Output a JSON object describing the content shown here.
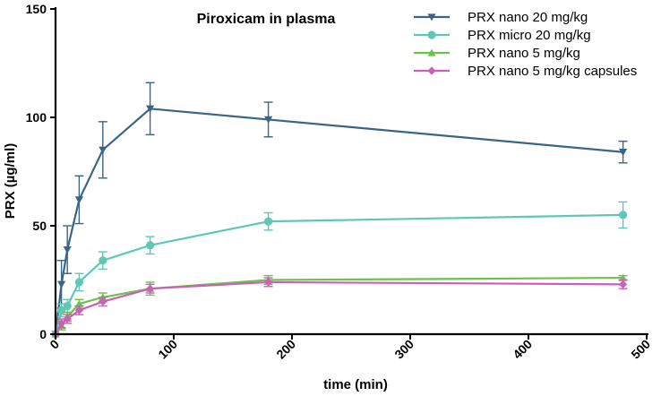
{
  "chart_data": {
    "type": "line",
    "title": "Piroxicam in plasma",
    "xlabel": "time (min)",
    "ylabel": "PRX (µg/ml)",
    "xlim": [
      0,
      500
    ],
    "ylim": [
      0,
      150
    ],
    "xticks": [
      0,
      100,
      200,
      300,
      400,
      500
    ],
    "yticks": [
      0,
      50,
      100,
      150
    ],
    "grid": false,
    "legend_position": "top-right",
    "x": [
      0,
      5,
      10,
      20,
      40,
      80,
      180,
      480
    ],
    "series": [
      {
        "name": "PRX nano 20 mg/kg",
        "color": "#3a6585",
        "marker": "triangle-down",
        "values": [
          0,
          23,
          39,
          62,
          85,
          104,
          99,
          84
        ],
        "errors": [
          0,
          11,
          11,
          11,
          13,
          12,
          8,
          5
        ]
      },
      {
        "name": "PRX micro 20 mg/kg",
        "color": "#5ec8b5",
        "marker": "circle",
        "values": [
          0,
          11,
          13,
          24,
          34,
          41,
          52,
          55
        ],
        "errors": [
          0,
          3,
          3,
          4,
          4,
          4,
          4,
          6
        ]
      },
      {
        "name": "PRX nano 5 mg/kg",
        "color": "#6cc24a",
        "marker": "triangle-up",
        "values": [
          0,
          4,
          8,
          14,
          17,
          21,
          25,
          26
        ],
        "errors": [
          0,
          2,
          2,
          2,
          2,
          3,
          2,
          1
        ]
      },
      {
        "name": "PRX nano 5 mg/kg capsules",
        "color": "#cc5fb8",
        "marker": "diamond",
        "values": [
          0,
          5,
          7,
          11,
          15,
          21,
          24,
          23
        ],
        "errors": [
          0,
          2,
          2,
          2,
          2,
          2,
          2,
          2
        ]
      }
    ]
  }
}
